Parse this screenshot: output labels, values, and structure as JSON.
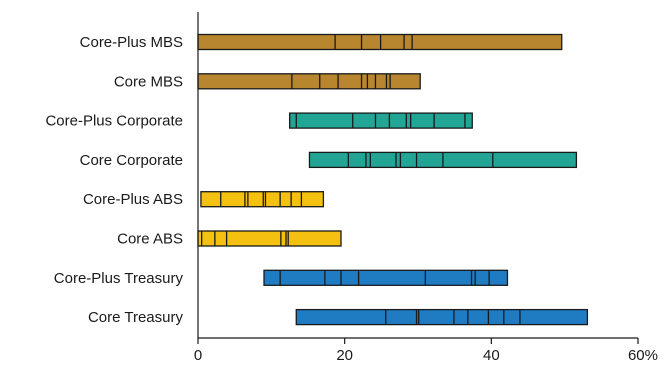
{
  "chart_data": {
    "type": "bar",
    "orientation": "horizontal",
    "subtype": "range-bar-with-markers",
    "title": "",
    "xlabel": "",
    "ylabel": "",
    "xlim": [
      0,
      60
    ],
    "xticks": [
      0,
      20,
      40,
      60
    ],
    "xtick_labels": [
      "0",
      "20",
      "40",
      "60%"
    ],
    "grid": false,
    "colors": {
      "MBS": "#B8862E",
      "Corporate": "#23A596",
      "ABS": "#F5C111",
      "Treasury": "#1F7CC2",
      "marker": "#1a1a1a",
      "axis": "#1a1a1a"
    },
    "categories": [
      {
        "label": "Core-Plus MBS",
        "group": "MBS",
        "min": 0,
        "max": 49.6,
        "markers": [
          18.7,
          22.3,
          24.9,
          28.1,
          29.2
        ]
      },
      {
        "label": "Core MBS",
        "group": "MBS",
        "min": 0,
        "max": 30.3,
        "markers": [
          12.8,
          16.6,
          19.1,
          22.3,
          23.1,
          24.2,
          25.7,
          26.2
        ]
      },
      {
        "label": "Core-Plus Corporate",
        "group": "Corporate",
        "min": 12.5,
        "max": 37.4,
        "markers": [
          13.4,
          21.1,
          24.2,
          26.1,
          28.4,
          29.0,
          32.2,
          36.4
        ]
      },
      {
        "label": "Core Corporate",
        "group": "Corporate",
        "min": 15.2,
        "max": 51.6,
        "markers": [
          20.5,
          22.9,
          23.5,
          27.0,
          27.6,
          29.8,
          33.4,
          40.2
        ]
      },
      {
        "label": "Core-Plus ABS",
        "group": "ABS",
        "min": 0.4,
        "max": 17.1,
        "markers": [
          3.1,
          6.4,
          6.8,
          8.9,
          9.2,
          11.2,
          12.7,
          14.1
        ]
      },
      {
        "label": "Core ABS",
        "group": "ABS",
        "min": 0,
        "max": 19.5,
        "markers": [
          0.5,
          2.3,
          3.9,
          11.3,
          12.0,
          12.3
        ]
      },
      {
        "label": "Core-Plus Treasury",
        "group": "Treasury",
        "min": 9.0,
        "max": 42.2,
        "markers": [
          11.2,
          17.3,
          19.5,
          21.9,
          31.0,
          37.3,
          37.8,
          39.7
        ]
      },
      {
        "label": "Core Treasury",
        "group": "Treasury",
        "min": 13.4,
        "max": 53.1,
        "markers": [
          25.6,
          29.8,
          30.1,
          34.9,
          36.8,
          39.6,
          41.7,
          43.9
        ]
      }
    ]
  }
}
